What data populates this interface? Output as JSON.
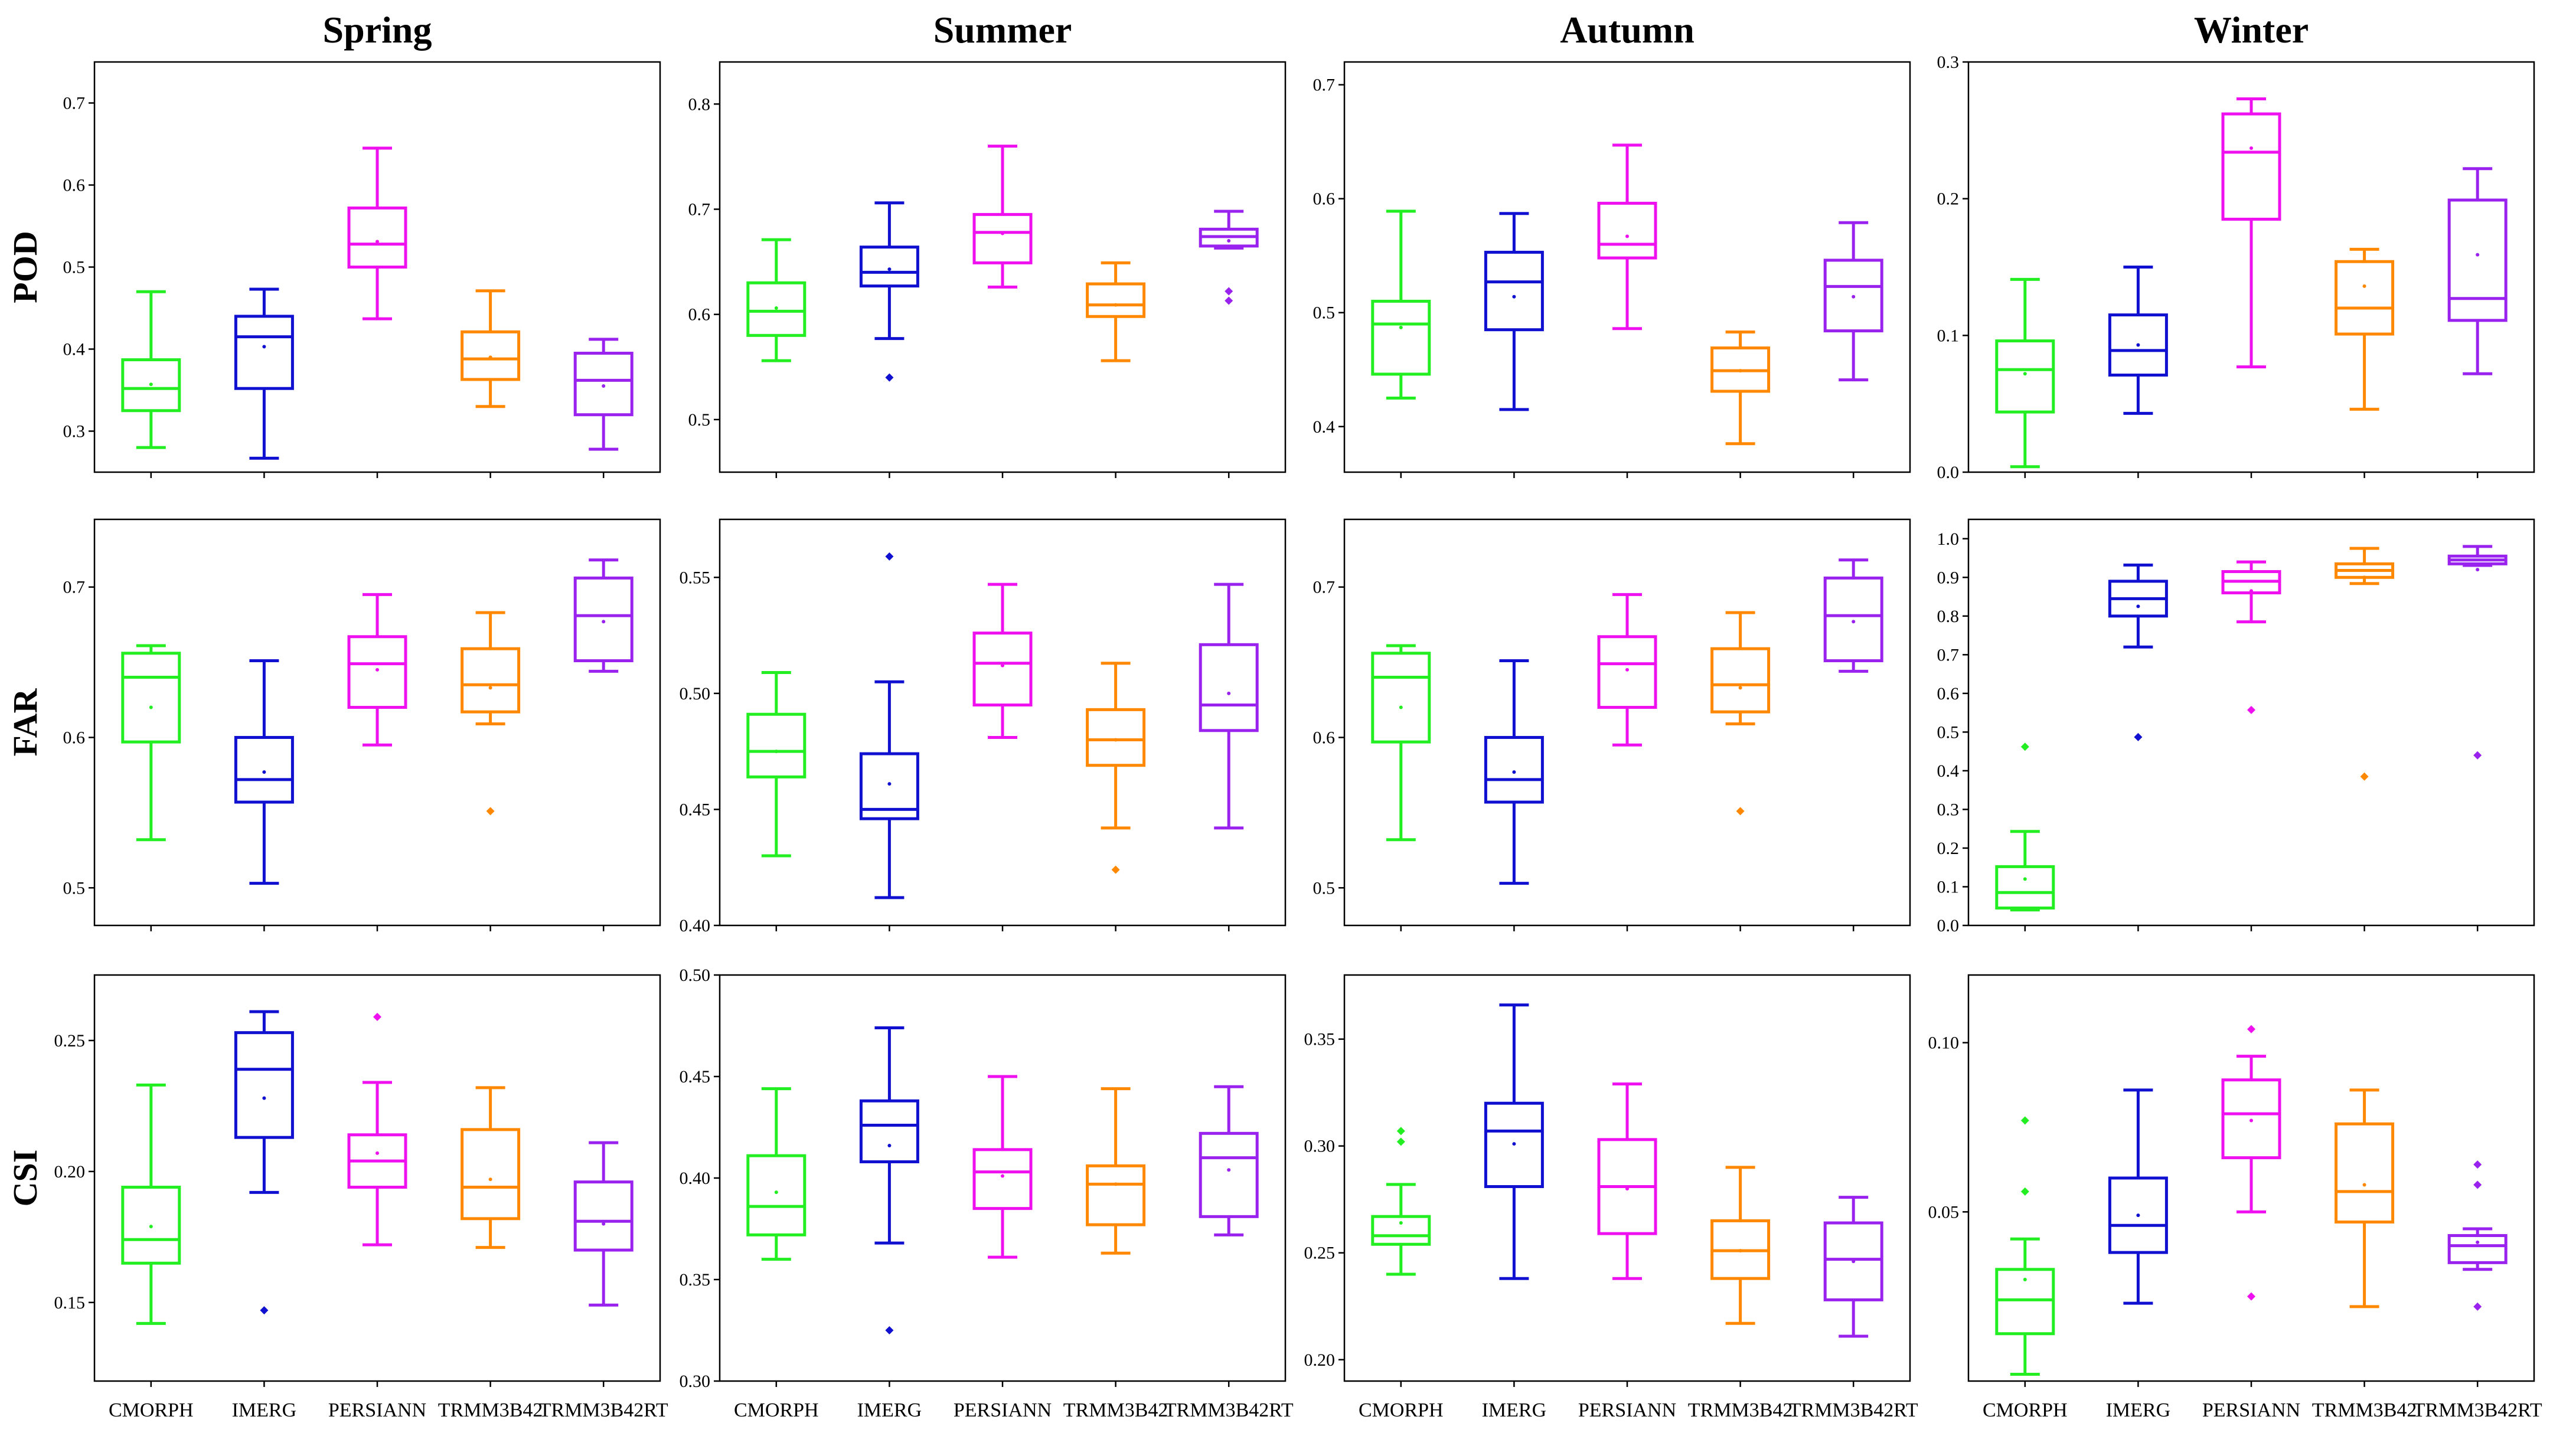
{
  "chart_data": {
    "type": "boxplot",
    "columns": [
      "Spring",
      "Summer",
      "Autumn",
      "Winter"
    ],
    "rows": [
      "POD",
      "FAR",
      "CSI"
    ],
    "categories": [
      "CMORPH",
      "IMERG",
      "PERSIANN",
      "TRMM3B42",
      "TRMM3B42RT"
    ],
    "colors": {
      "CMORPH": "#22ee22",
      "IMERG": "#1010d0",
      "PERSIANN": "#ee10ee",
      "TRMM3B42": "#ff8800",
      "TRMM3B42RT": "#9922ee"
    },
    "panels": [
      {
        "row": "POD",
        "season": "Spring",
        "ylim": [
          0.25,
          0.75
        ],
        "yticks": [
          "0.3",
          "0.4",
          "0.5",
          "0.6",
          "0.7"
        ],
        "boxes": [
          {
            "category": "CMORPH",
            "whislo": 0.28,
            "q1": 0.325,
            "med": 0.352,
            "q3": 0.387,
            "whishi": 0.47,
            "mean": 0.357,
            "fliers": []
          },
          {
            "category": "IMERG",
            "whislo": 0.267,
            "q1": 0.352,
            "med": 0.415,
            "q3": 0.44,
            "whishi": 0.473,
            "mean": 0.403,
            "fliers": []
          },
          {
            "category": "PERSIANN",
            "whislo": 0.437,
            "q1": 0.5,
            "med": 0.528,
            "q3": 0.572,
            "whishi": 0.645,
            "mean": 0.531,
            "fliers": []
          },
          {
            "category": "TRMM3B42",
            "whislo": 0.33,
            "q1": 0.363,
            "med": 0.388,
            "q3": 0.421,
            "whishi": 0.471,
            "mean": 0.39,
            "fliers": []
          },
          {
            "category": "TRMM3B42RT",
            "whislo": 0.278,
            "q1": 0.32,
            "med": 0.362,
            "q3": 0.395,
            "whishi": 0.412,
            "mean": 0.355,
            "fliers": []
          }
        ]
      },
      {
        "row": "POD",
        "season": "Summer",
        "ylim": [
          0.45,
          0.84
        ],
        "yticks": [
          "0.5",
          "0.6",
          "0.7",
          "0.8"
        ],
        "boxes": [
          {
            "category": "CMORPH",
            "whislo": 0.556,
            "q1": 0.58,
            "med": 0.603,
            "q3": 0.63,
            "whishi": 0.671,
            "mean": 0.606,
            "fliers": []
          },
          {
            "category": "IMERG",
            "whislo": 0.577,
            "q1": 0.627,
            "med": 0.64,
            "q3": 0.664,
            "whishi": 0.706,
            "mean": 0.643,
            "fliers": [
              0.54
            ]
          },
          {
            "category": "PERSIANN",
            "whislo": 0.626,
            "q1": 0.649,
            "med": 0.678,
            "q3": 0.695,
            "whishi": 0.76,
            "mean": 0.677,
            "fliers": []
          },
          {
            "category": "TRMM3B42",
            "whislo": 0.556,
            "q1": 0.598,
            "med": 0.609,
            "q3": 0.629,
            "whishi": 0.649,
            "mean": 0.609,
            "fliers": []
          },
          {
            "category": "TRMM3B42RT",
            "whislo": 0.663,
            "q1": 0.665,
            "med": 0.674,
            "q3": 0.681,
            "whishi": 0.698,
            "mean": 0.67,
            "fliers": [
              0.622,
              0.613
            ]
          }
        ]
      },
      {
        "row": "POD",
        "season": "Autumn",
        "ylim": [
          0.36,
          0.72
        ],
        "yticks": [
          "0.4",
          "0.5",
          "0.6",
          "0.7"
        ],
        "boxes": [
          {
            "category": "CMORPH",
            "whislo": 0.425,
            "q1": 0.446,
            "med": 0.49,
            "q3": 0.51,
            "whishi": 0.589,
            "mean": 0.487,
            "fliers": []
          },
          {
            "category": "IMERG",
            "whislo": 0.415,
            "q1": 0.485,
            "med": 0.527,
            "q3": 0.553,
            "whishi": 0.587,
            "mean": 0.514,
            "fliers": []
          },
          {
            "category": "PERSIANN",
            "whislo": 0.486,
            "q1": 0.548,
            "med": 0.56,
            "q3": 0.596,
            "whishi": 0.647,
            "mean": 0.567,
            "fliers": []
          },
          {
            "category": "TRMM3B42",
            "whislo": 0.385,
            "q1": 0.431,
            "med": 0.449,
            "q3": 0.469,
            "whishi": 0.483,
            "mean": 0.449,
            "fliers": []
          },
          {
            "category": "TRMM3B42RT",
            "whislo": 0.441,
            "q1": 0.484,
            "med": 0.523,
            "q3": 0.546,
            "whishi": 0.579,
            "mean": 0.514,
            "fliers": []
          }
        ]
      },
      {
        "row": "POD",
        "season": "Winter",
        "ylim": [
          0.0,
          0.3
        ],
        "yticks": [
          "0.0",
          "0.1",
          "0.2",
          "0.3"
        ],
        "boxes": [
          {
            "category": "CMORPH",
            "whislo": 0.004,
            "q1": 0.044,
            "med": 0.075,
            "q3": 0.096,
            "whishi": 0.141,
            "mean": 0.072,
            "fliers": []
          },
          {
            "category": "IMERG",
            "whislo": 0.043,
            "q1": 0.071,
            "med": 0.089,
            "q3": 0.115,
            "whishi": 0.15,
            "mean": 0.093,
            "fliers": []
          },
          {
            "category": "PERSIANN",
            "whislo": 0.077,
            "q1": 0.185,
            "med": 0.234,
            "q3": 0.262,
            "whishi": 0.273,
            "mean": 0.237,
            "fliers": []
          },
          {
            "category": "TRMM3B42",
            "whislo": 0.046,
            "q1": 0.101,
            "med": 0.12,
            "q3": 0.154,
            "whishi": 0.163,
            "mean": 0.136,
            "fliers": []
          },
          {
            "category": "TRMM3B42RT",
            "whislo": 0.072,
            "q1": 0.111,
            "med": 0.127,
            "q3": 0.199,
            "whishi": 0.222,
            "mean": 0.159,
            "fliers": []
          }
        ]
      },
      {
        "row": "FAR",
        "season": "Spring",
        "ylim": [
          0.475,
          0.745
        ],
        "yticks": [
          "0.5",
          "0.6",
          "0.7"
        ],
        "boxes": [
          {
            "category": "CMORPH",
            "whislo": 0.532,
            "q1": 0.597,
            "med": 0.64,
            "q3": 0.656,
            "whishi": 0.661,
            "mean": 0.62,
            "fliers": []
          },
          {
            "category": "IMERG",
            "whislo": 0.503,
            "q1": 0.557,
            "med": 0.572,
            "q3": 0.6,
            "whishi": 0.651,
            "mean": 0.577,
            "fliers": []
          },
          {
            "category": "PERSIANN",
            "whislo": 0.595,
            "q1": 0.62,
            "med": 0.649,
            "q3": 0.667,
            "whishi": 0.695,
            "mean": 0.645,
            "fliers": []
          },
          {
            "category": "TRMM3B42",
            "whislo": 0.609,
            "q1": 0.617,
            "med": 0.635,
            "q3": 0.659,
            "whishi": 0.683,
            "mean": 0.633,
            "fliers": [
              0.551
            ]
          },
          {
            "category": "TRMM3B42RT",
            "whislo": 0.644,
            "q1": 0.651,
            "med": 0.681,
            "q3": 0.706,
            "whishi": 0.718,
            "mean": 0.677,
            "fliers": []
          }
        ]
      },
      {
        "row": "FAR",
        "season": "Summer",
        "ylim": [
          0.4,
          0.575
        ],
        "yticks": [
          "0.40",
          "0.45",
          "0.50",
          "0.55"
        ],
        "boxes": [
          {
            "category": "CMORPH",
            "whislo": 0.43,
            "q1": 0.464,
            "med": 0.475,
            "q3": 0.491,
            "whishi": 0.509,
            "mean": 0.475,
            "fliers": []
          },
          {
            "category": "IMERG",
            "whislo": 0.412,
            "q1": 0.446,
            "med": 0.45,
            "q3": 0.474,
            "whishi": 0.505,
            "mean": 0.461,
            "fliers": [
              0.559
            ]
          },
          {
            "category": "PERSIANN",
            "whislo": 0.481,
            "q1": 0.495,
            "med": 0.513,
            "q3": 0.526,
            "whishi": 0.547,
            "mean": 0.512,
            "fliers": []
          },
          {
            "category": "TRMM3B42",
            "whislo": 0.442,
            "q1": 0.469,
            "med": 0.48,
            "q3": 0.493,
            "whishi": 0.513,
            "mean": 0.48,
            "fliers": [
              0.424
            ]
          },
          {
            "category": "TRMM3B42RT",
            "whislo": 0.442,
            "q1": 0.484,
            "med": 0.495,
            "q3": 0.521,
            "whishi": 0.547,
            "mean": 0.5,
            "fliers": []
          }
        ]
      },
      {
        "row": "FAR",
        "season": "Autumn",
        "ylim": [
          0.475,
          0.745
        ],
        "yticks": [
          "0.5",
          "0.6",
          "0.7"
        ],
        "boxes": [
          {
            "category": "CMORPH",
            "whislo": 0.532,
            "q1": 0.597,
            "med": 0.64,
            "q3": 0.656,
            "whishi": 0.661,
            "mean": 0.62,
            "fliers": []
          },
          {
            "category": "IMERG",
            "whislo": 0.503,
            "q1": 0.557,
            "med": 0.572,
            "q3": 0.6,
            "whishi": 0.651,
            "mean": 0.577,
            "fliers": []
          },
          {
            "category": "PERSIANN",
            "whislo": 0.595,
            "q1": 0.62,
            "med": 0.649,
            "q3": 0.667,
            "whishi": 0.695,
            "mean": 0.645,
            "fliers": []
          },
          {
            "category": "TRMM3B42",
            "whislo": 0.609,
            "q1": 0.617,
            "med": 0.635,
            "q3": 0.659,
            "whishi": 0.683,
            "mean": 0.633,
            "fliers": [
              0.551
            ]
          },
          {
            "category": "TRMM3B42RT",
            "whislo": 0.644,
            "q1": 0.651,
            "med": 0.681,
            "q3": 0.706,
            "whishi": 0.718,
            "mean": 0.677,
            "fliers": []
          }
        ]
      },
      {
        "row": "FAR",
        "season": "Winter",
        "ylim": [
          0.0,
          1.05
        ],
        "yticks": [
          "0.0",
          "0.1",
          "0.2",
          "0.3",
          "0.4",
          "0.5",
          "0.6",
          "0.7",
          "0.8",
          "0.9",
          "1.0"
        ],
        "boxes": [
          {
            "category": "CMORPH",
            "whislo": 0.04,
            "q1": 0.045,
            "med": 0.085,
            "q3": 0.152,
            "whishi": 0.243,
            "mean": 0.12,
            "fliers": [
              0.462
            ]
          },
          {
            "category": "IMERG",
            "whislo": 0.72,
            "q1": 0.8,
            "med": 0.845,
            "q3": 0.89,
            "whishi": 0.932,
            "mean": 0.825,
            "fliers": [
              0.487
            ]
          },
          {
            "category": "PERSIANN",
            "whislo": 0.785,
            "q1": 0.86,
            "med": 0.89,
            "q3": 0.915,
            "whishi": 0.94,
            "mean": 0.865,
            "fliers": [
              0.557
            ]
          },
          {
            "category": "TRMM3B42",
            "whislo": 0.884,
            "q1": 0.9,
            "med": 0.918,
            "q3": 0.935,
            "whishi": 0.975,
            "mean": 0.9,
            "fliers": [
              0.385
            ]
          },
          {
            "category": "TRMM3B42RT",
            "whislo": 0.931,
            "q1": 0.935,
            "med": 0.945,
            "q3": 0.955,
            "whishi": 0.98,
            "mean": 0.92,
            "fliers": [
              0.44
            ]
          }
        ]
      },
      {
        "row": "CSI",
        "season": "Spring",
        "ylim": [
          0.12,
          0.275
        ],
        "yticks": [
          "0.15",
          "0.20",
          "0.25"
        ],
        "boxes": [
          {
            "category": "CMORPH",
            "whislo": 0.142,
            "q1": 0.165,
            "med": 0.174,
            "q3": 0.194,
            "whishi": 0.233,
            "mean": 0.179,
            "fliers": []
          },
          {
            "category": "IMERG",
            "whislo": 0.192,
            "q1": 0.213,
            "med": 0.239,
            "q3": 0.253,
            "whishi": 0.261,
            "mean": 0.228,
            "fliers": [
              0.147
            ]
          },
          {
            "category": "PERSIANN",
            "whislo": 0.172,
            "q1": 0.194,
            "med": 0.204,
            "q3": 0.214,
            "whishi": 0.234,
            "mean": 0.207,
            "fliers": [
              0.259
            ]
          },
          {
            "category": "TRMM3B42",
            "whislo": 0.171,
            "q1": 0.182,
            "med": 0.194,
            "q3": 0.216,
            "whishi": 0.232,
            "mean": 0.197,
            "fliers": []
          },
          {
            "category": "TRMM3B42RT",
            "whislo": 0.149,
            "q1": 0.17,
            "med": 0.181,
            "q3": 0.196,
            "whishi": 0.211,
            "mean": 0.18,
            "fliers": []
          }
        ]
      },
      {
        "row": "CSI",
        "season": "Summer",
        "ylim": [
          0.3,
          0.5
        ],
        "yticks": [
          "0.30",
          "0.35",
          "0.40",
          "0.45",
          "0.50"
        ],
        "boxes": [
          {
            "category": "CMORPH",
            "whislo": 0.36,
            "q1": 0.372,
            "med": 0.386,
            "q3": 0.411,
            "whishi": 0.444,
            "mean": 0.393,
            "fliers": []
          },
          {
            "category": "IMERG",
            "whislo": 0.368,
            "q1": 0.408,
            "med": 0.426,
            "q3": 0.438,
            "whishi": 0.474,
            "mean": 0.416,
            "fliers": [
              0.325
            ]
          },
          {
            "category": "PERSIANN",
            "whislo": 0.361,
            "q1": 0.385,
            "med": 0.403,
            "q3": 0.414,
            "whishi": 0.45,
            "mean": 0.401,
            "fliers": []
          },
          {
            "category": "TRMM3B42",
            "whislo": 0.363,
            "q1": 0.377,
            "med": 0.397,
            "q3": 0.406,
            "whishi": 0.444,
            "mean": 0.397,
            "fliers": []
          },
          {
            "category": "TRMM3B42RT",
            "whislo": 0.372,
            "q1": 0.381,
            "med": 0.41,
            "q3": 0.422,
            "whishi": 0.445,
            "mean": 0.404,
            "fliers": []
          }
        ]
      },
      {
        "row": "CSI",
        "season": "Autumn",
        "ylim": [
          0.19,
          0.38
        ],
        "yticks": [
          "0.20",
          "0.25",
          "0.30",
          "0.35"
        ],
        "boxes": [
          {
            "category": "CMORPH",
            "whislo": 0.24,
            "q1": 0.254,
            "med": 0.258,
            "q3": 0.267,
            "whishi": 0.282,
            "mean": 0.264,
            "fliers": [
              0.307,
              0.302
            ]
          },
          {
            "category": "IMERG",
            "whislo": 0.238,
            "q1": 0.281,
            "med": 0.307,
            "q3": 0.32,
            "whishi": 0.366,
            "mean": 0.301,
            "fliers": []
          },
          {
            "category": "PERSIANN",
            "whislo": 0.238,
            "q1": 0.259,
            "med": 0.281,
            "q3": 0.303,
            "whishi": 0.329,
            "mean": 0.28,
            "fliers": []
          },
          {
            "category": "TRMM3B42",
            "whislo": 0.217,
            "q1": 0.238,
            "med": 0.251,
            "q3": 0.265,
            "whishi": 0.29,
            "mean": 0.251,
            "fliers": []
          },
          {
            "category": "TRMM3B42RT",
            "whislo": 0.211,
            "q1": 0.228,
            "med": 0.247,
            "q3": 0.264,
            "whishi": 0.276,
            "mean": 0.246,
            "fliers": []
          }
        ]
      },
      {
        "row": "CSI",
        "season": "Winter",
        "ylim": [
          0.0,
          0.12
        ],
        "yticks": [
          "0.05",
          "0.10"
        ],
        "boxes": [
          {
            "category": "CMORPH",
            "whislo": 0.002,
            "q1": 0.014,
            "med": 0.024,
            "q3": 0.033,
            "whishi": 0.042,
            "mean": 0.03,
            "fliers": [
              0.077,
              0.056
            ]
          },
          {
            "category": "IMERG",
            "whislo": 0.023,
            "q1": 0.038,
            "med": 0.046,
            "q3": 0.06,
            "whishi": 0.086,
            "mean": 0.049,
            "fliers": []
          },
          {
            "category": "PERSIANN",
            "whislo": 0.05,
            "q1": 0.066,
            "med": 0.079,
            "q3": 0.089,
            "whishi": 0.096,
            "mean": 0.077,
            "fliers": [
              0.104,
              0.025
            ]
          },
          {
            "category": "TRMM3B42",
            "whislo": 0.022,
            "q1": 0.047,
            "med": 0.056,
            "q3": 0.076,
            "whishi": 0.086,
            "mean": 0.058,
            "fliers": []
          },
          {
            "category": "TRMM3B42RT",
            "whislo": 0.033,
            "q1": 0.035,
            "med": 0.04,
            "q3": 0.043,
            "whishi": 0.045,
            "mean": 0.041,
            "fliers": [
              0.064,
              0.058,
              0.022
            ]
          }
        ]
      }
    ]
  }
}
